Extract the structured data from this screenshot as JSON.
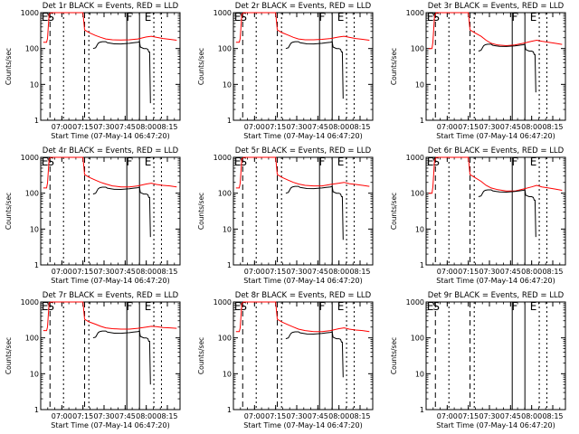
{
  "chart_data": [
    {
      "type": "line",
      "title": "Det 1r BLACK = Events, RED = LLD",
      "xlabel": "Start Time (07-May-14 06:47:20)",
      "ylabel": "Counts/sec",
      "yscale": "log",
      "ylim": [
        1,
        1000
      ],
      "y_ticks": [
        "1",
        "10",
        "100",
        "1000"
      ],
      "x_ticks": [
        "07:00",
        "07:15",
        "07:30",
        "07:45",
        "08:00",
        "08:15"
      ],
      "markers": [
        "E",
        "S",
        "F",
        "E"
      ],
      "series": [
        {
          "name": "BLACK = Events",
          "color": "#000000",
          "x": [],
          "y": []
        },
        {
          "name": "RED = LLD",
          "color": "#ff0000",
          "x": [],
          "y": []
        }
      ]
    },
    {
      "type": "line",
      "title": "Det 2r BLACK = Events, RED = LLD",
      "xlabel": "Start Time (07-May-14 06:47:20)",
      "ylabel": "Counts/sec",
      "yscale": "log",
      "ylim": [
        1,
        1000
      ],
      "y_ticks": [
        "1",
        "10",
        "100",
        "1000"
      ],
      "x_ticks": [
        "07:00",
        "07:15",
        "07:30",
        "07:45",
        "08:00",
        "08:15"
      ],
      "markers": [
        "E",
        "S",
        "F",
        "E"
      ],
      "series": [
        {
          "name": "BLACK = Events",
          "color": "#000000",
          "x": [],
          "y": []
        },
        {
          "name": "RED = LLD",
          "color": "#ff0000",
          "x": [],
          "y": []
        }
      ]
    },
    {
      "type": "line",
      "title": "Det 3r BLACK = Events, RED = LLD",
      "xlabel": "Start Time (07-May-14 06:47:20)",
      "ylabel": "Counts/sec",
      "yscale": "log",
      "ylim": [
        1,
        1000
      ],
      "y_ticks": [
        "1",
        "10",
        "100",
        "1000"
      ],
      "x_ticks": [
        "07:00",
        "07:15",
        "07:30",
        "07:45",
        "08:00",
        "08:15"
      ],
      "markers": [
        "E",
        "S",
        "F",
        "E"
      ],
      "series": [
        {
          "name": "BLACK = Events",
          "color": "#000000",
          "x": [],
          "y": []
        },
        {
          "name": "RED = LLD",
          "color": "#ff0000",
          "x": [],
          "y": []
        }
      ]
    },
    {
      "type": "line",
      "title": "Det 4r BLACK = Events, RED = LLD",
      "xlabel": "Start Time (07-May-14 06:47:20)",
      "ylabel": "Counts/sec",
      "yscale": "log",
      "ylim": [
        1,
        1000
      ],
      "y_ticks": [
        "1",
        "10",
        "100",
        "1000"
      ],
      "x_ticks": [
        "07:00",
        "07:15",
        "07:30",
        "07:45",
        "08:00",
        "08:15"
      ],
      "markers": [
        "E",
        "S",
        "F",
        "E"
      ],
      "series": [
        {
          "name": "BLACK = Events",
          "color": "#000000",
          "x": [],
          "y": []
        },
        {
          "name": "RED = LLD",
          "color": "#ff0000",
          "x": [],
          "y": []
        }
      ]
    },
    {
      "type": "line",
      "title": "Det 5r BLACK = Events, RED = LLD",
      "xlabel": "Start Time (07-May-14 06:47:20)",
      "ylabel": "Counts/sec",
      "yscale": "log",
      "ylim": [
        1,
        1000
      ],
      "y_ticks": [
        "1",
        "10",
        "100",
        "1000"
      ],
      "x_ticks": [
        "07:00",
        "07:15",
        "07:30",
        "07:45",
        "08:00",
        "08:15"
      ],
      "markers": [
        "E",
        "S",
        "F",
        "E"
      ],
      "series": [
        {
          "name": "BLACK = Events",
          "color": "#000000",
          "x": [],
          "y": []
        },
        {
          "name": "RED = LLD",
          "color": "#ff0000",
          "x": [],
          "y": []
        }
      ]
    },
    {
      "type": "line",
      "title": "Det 6r BLACK = Events, RED = LLD",
      "xlabel": "Start Time (07-May-14 06:47:20)",
      "ylabel": "Counts/sec",
      "yscale": "log",
      "ylim": [
        1,
        1000
      ],
      "y_ticks": [
        "1",
        "10",
        "100",
        "1000"
      ],
      "x_ticks": [
        "07:00",
        "07:15",
        "07:30",
        "07:45",
        "08:00",
        "08:15"
      ],
      "markers": [
        "E",
        "S",
        "F",
        "E"
      ],
      "series": [
        {
          "name": "BLACK = Events",
          "color": "#000000",
          "x": [],
          "y": []
        },
        {
          "name": "RED = LLD",
          "color": "#ff0000",
          "x": [],
          "y": []
        }
      ]
    },
    {
      "type": "line",
      "title": "Det 7r BLACK = Events, RED = LLD",
      "xlabel": "Start Time (07-May-14 06:47:20)",
      "ylabel": "Counts/sec",
      "yscale": "log",
      "ylim": [
        1,
        1000
      ],
      "y_ticks": [
        "1",
        "10",
        "100",
        "1000"
      ],
      "x_ticks": [
        "07:00",
        "07:15",
        "07:30",
        "07:45",
        "08:00",
        "08:15"
      ],
      "markers": [
        "E",
        "S",
        "F",
        "E"
      ],
      "series": [
        {
          "name": "BLACK = Events",
          "color": "#000000",
          "x": [],
          "y": []
        },
        {
          "name": "RED = LLD",
          "color": "#ff0000",
          "x": [],
          "y": []
        }
      ]
    },
    {
      "type": "line",
      "title": "Det 8r BLACK = Events, RED = LLD",
      "xlabel": "Start Time (07-May-14 06:47:20)",
      "ylabel": "Counts/sec",
      "yscale": "log",
      "ylim": [
        1,
        1000
      ],
      "y_ticks": [
        "1",
        "10",
        "100",
        "1000"
      ],
      "x_ticks": [
        "07:00",
        "07:15",
        "07:30",
        "07:45",
        "08:00",
        "08:15"
      ],
      "markers": [
        "E",
        "S",
        "F",
        "E"
      ],
      "series": [
        {
          "name": "BLACK = Events",
          "color": "#000000",
          "x": [],
          "y": []
        },
        {
          "name": "RED = LLD",
          "color": "#ff0000",
          "x": [],
          "y": []
        }
      ]
    },
    {
      "type": "line",
      "title": "Det 9r BLACK = Events, RED = LLD",
      "xlabel": "Start Time (07-May-14 06:47:20)",
      "ylabel": "Counts/sec",
      "yscale": "log",
      "ylim": [
        1,
        1000
      ],
      "y_ticks": [
        "1",
        "10",
        "100",
        "1000"
      ],
      "x_ticks": [
        "07:00",
        "07:15",
        "07:30",
        "07:45",
        "08:00",
        "08:15"
      ],
      "markers": [
        "E",
        "S",
        "F",
        "E"
      ],
      "series": [
        {
          "name": "BLACK = Events",
          "color": "#000000",
          "x": [],
          "y": []
        },
        {
          "name": "RED = LLD",
          "color": "#ff0000",
          "x": [],
          "y": []
        }
      ]
    }
  ]
}
